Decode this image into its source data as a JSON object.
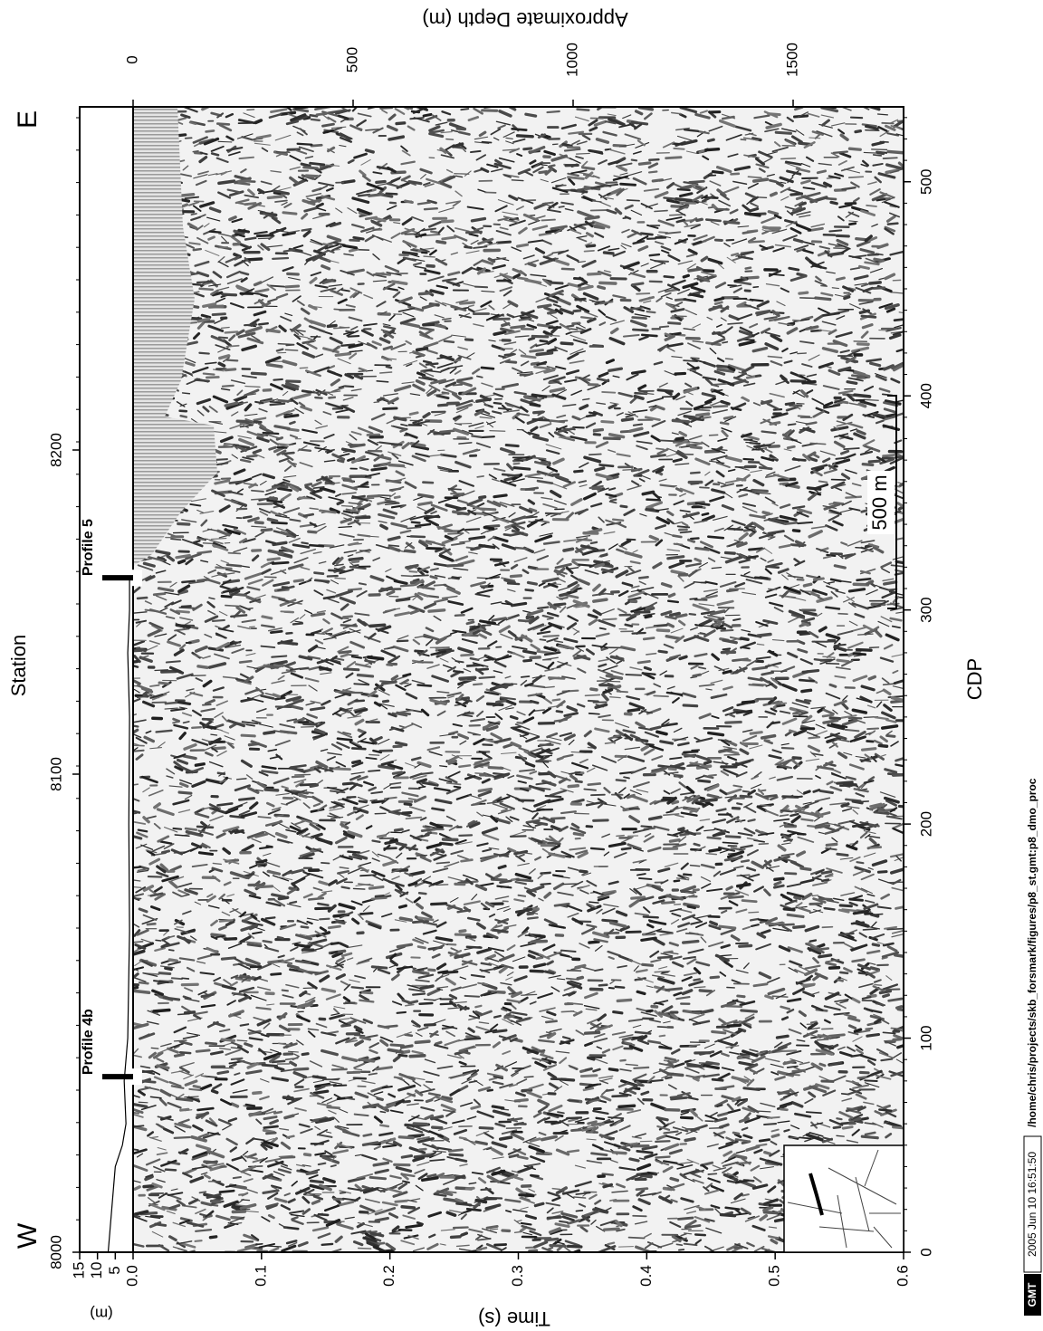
{
  "chart_data": {
    "type": "seismic-section",
    "left_label": "W",
    "right_label": "E",
    "station_label": "Station",
    "station_ticks": [
      8000,
      8100,
      8200
    ],
    "xlabel": "Time (s)",
    "xlim": [
      0,
      0.6
    ],
    "xticks": [
      {
        "value": 0,
        "label": "0.0"
      },
      0.1,
      0.2,
      0.3,
      0.4,
      0.5,
      0.6
    ],
    "ylabel": "CDP",
    "ylim": [
      0,
      535
    ],
    "yticks": [
      0,
      100,
      200,
      300,
      400,
      500
    ],
    "depth_label": "Approximate Depth (m)",
    "depth_lim": [
      0,
      1751
    ],
    "depth_ticks": [
      0,
      500,
      1000,
      1500
    ],
    "elevation_label": "(m)",
    "elevation_lim": [
      0,
      15
    ],
    "elevation_ticks": [
      5,
      10,
      15
    ],
    "elevation": {
      "x": [
        0,
        10,
        20,
        30,
        40,
        50,
        60,
        80,
        100,
        150,
        200,
        250,
        280,
        300,
        315
      ],
      "values": [
        7,
        6.5,
        6,
        5.5,
        5,
        3,
        2,
        2.5,
        1.5,
        1,
        1.2,
        1,
        1.5,
        1,
        1
      ]
    },
    "annotations": [
      {
        "text": "Profile 4b",
        "cdp": 82
      },
      {
        "text": "Profile 5",
        "cdp": 315
      }
    ],
    "scale_bar": "500 m",
    "stamp": {
      "logo": "GMT",
      "time": "2005 Jun 10 16:51:50",
      "path": "/home/chris/projects/skb_forsmark/figures/p8_st.gmt:p8_dmo_proc"
    }
  }
}
